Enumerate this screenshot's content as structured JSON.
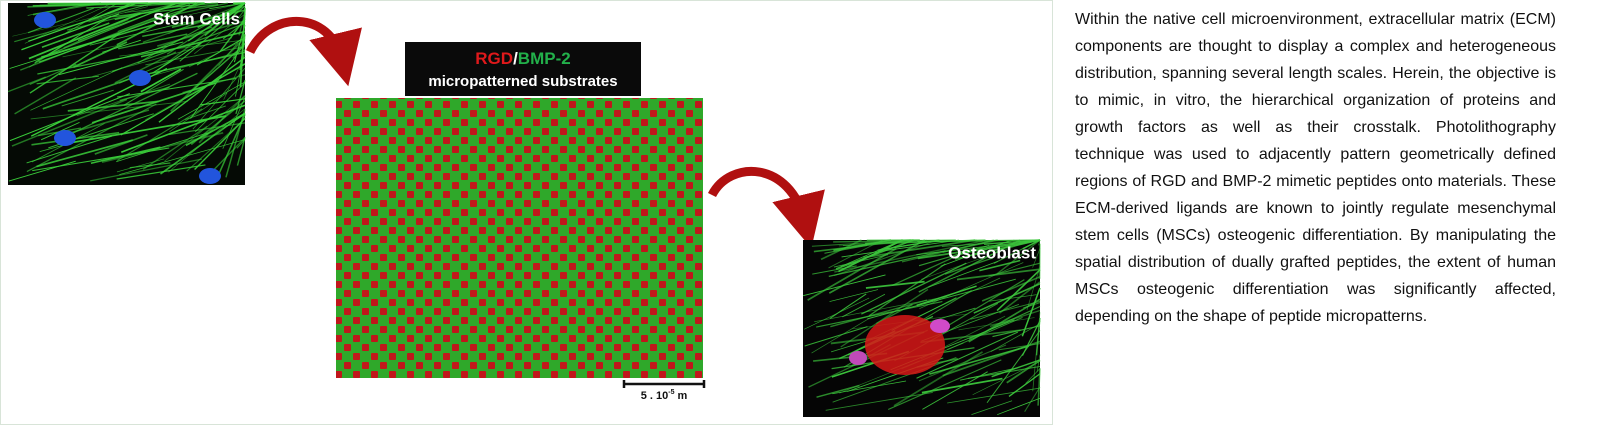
{
  "figure": {
    "stem_label": "Stem Cells",
    "substrate_title": {
      "part1": "RGD",
      "sep": "/",
      "part2": "BMP-2",
      "line2": "micropatterned substrates"
    },
    "scale_bar": {
      "base": "5 . 10",
      "exp": "-5",
      "unit": "m"
    },
    "osteo_label": "Osteoblast"
  },
  "abstract": "Within the native cell microenvironment, extracellular matrix (ECM) components are thought to display a complex and heterogeneous distribution, spanning several length scales. Herein, the objective is to mimic, in vitro, the hierarchical organization of proteins and growth factors as well as their crosstalk. Photolithography technique was used to adjacently pattern geometrically defined regions of RGD and BMP-2 mimetic peptides onto materials. These ECM-derived ligands are known to jointly regulate mesenchymal stem cells (MSCs) osteogenic differentiation. By manipulating the spatial distribution of dually grafted peptides, the extent of human MSCs osteogenic differentiation was significantly affected, depending on the shape of peptide micropatterns."
}
